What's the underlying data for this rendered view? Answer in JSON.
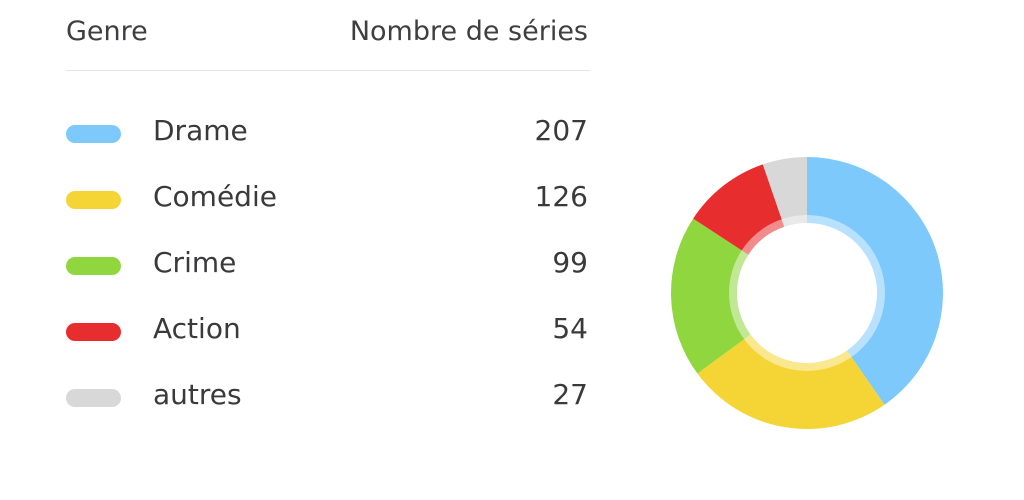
{
  "header": {
    "genre": "Genre",
    "count": "Nombre de séries"
  },
  "colors": {
    "drame": "#7dc9fb",
    "comedie": "#f5d535",
    "crime": "#8fd63f",
    "action": "#e82d2f",
    "autres": "#d8d8d8"
  },
  "chart_data": {
    "type": "pie",
    "style": "donut",
    "xlabel": "Genre",
    "ylabel": "Nombre de séries",
    "categories": [
      "Drame",
      "Comédie",
      "Crime",
      "Action",
      "autres"
    ],
    "values": [
      207,
      126,
      99,
      54,
      27
    ],
    "display_values": [
      "207",
      "126",
      "99",
      "54",
      "27"
    ],
    "colors": [
      "#7dc9fb",
      "#f5d535",
      "#8fd63f",
      "#e82d2f",
      "#d8d8d8"
    ]
  }
}
